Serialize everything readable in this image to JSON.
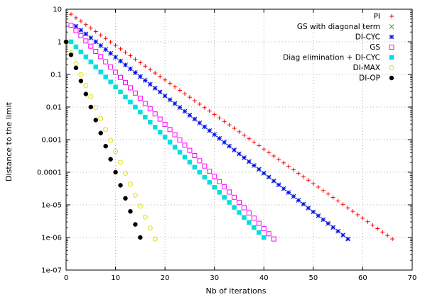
{
  "chart_data": {
    "type": "scatter",
    "xlabel": "Nb of iterations",
    "ylabel": "Distance to the limit",
    "xlim": [
      0,
      70
    ],
    "ylim": [
      1e-07,
      10
    ],
    "y_scale": "log",
    "x_ticks": [
      0,
      10,
      20,
      30,
      40,
      50,
      60,
      70
    ],
    "x_tick_labels": [
      "0",
      "10",
      "20",
      "30",
      "40",
      "50",
      "60",
      "70"
    ],
    "y_ticks": [
      1e-07,
      1e-06,
      1e-05,
      0.0001,
      0.001,
      0.01,
      0.1,
      1,
      10
    ],
    "y_tick_labels": [
      "1e-07",
      "1e-06",
      "1e-05",
      "0.0001",
      "0.001",
      "0.01",
      "0.1",
      "1",
      "10"
    ],
    "grid": true,
    "legend_position": "top-right",
    "series": [
      {
        "name": "PI",
        "color": "#ff0000",
        "marker": "plus",
        "x_start": 1,
        "x_end": 66,
        "y_start": 7,
        "y_end": 9e-07
      },
      {
        "name": "GS with diagonal term",
        "color": "#00c000",
        "marker": "cross",
        "x_start": 2,
        "x_end": 57,
        "y_start": 3,
        "y_end": 9e-07
      },
      {
        "name": "DI-CYC",
        "color": "#0000ff",
        "marker": "star",
        "x_start": 2,
        "x_end": 57,
        "y_start": 3,
        "y_end": 9e-07
      },
      {
        "name": "GS",
        "color": "#ff00ff",
        "marker": "square-open",
        "x_start": 1,
        "x_end": 42,
        "y_start": 3.2,
        "y_end": 9e-07
      },
      {
        "name": "Diag elimination + DI-CYC",
        "color": "#00e0e0",
        "marker": "square-filled",
        "x_start": 1,
        "x_end": 40,
        "y_start": 1,
        "y_end": 1e-06
      },
      {
        "name": "DI-MAX",
        "color": "#e0e000",
        "marker": "circle-open",
        "x_start": 0,
        "x_end": 18,
        "y_start": 1,
        "y_end": 9e-07
      },
      {
        "name": "DI-OP",
        "color": "#000000",
        "marker": "circle-filled",
        "x_start": 0,
        "x_end": 15,
        "y_start": 1,
        "y_end": 1e-06
      }
    ]
  }
}
